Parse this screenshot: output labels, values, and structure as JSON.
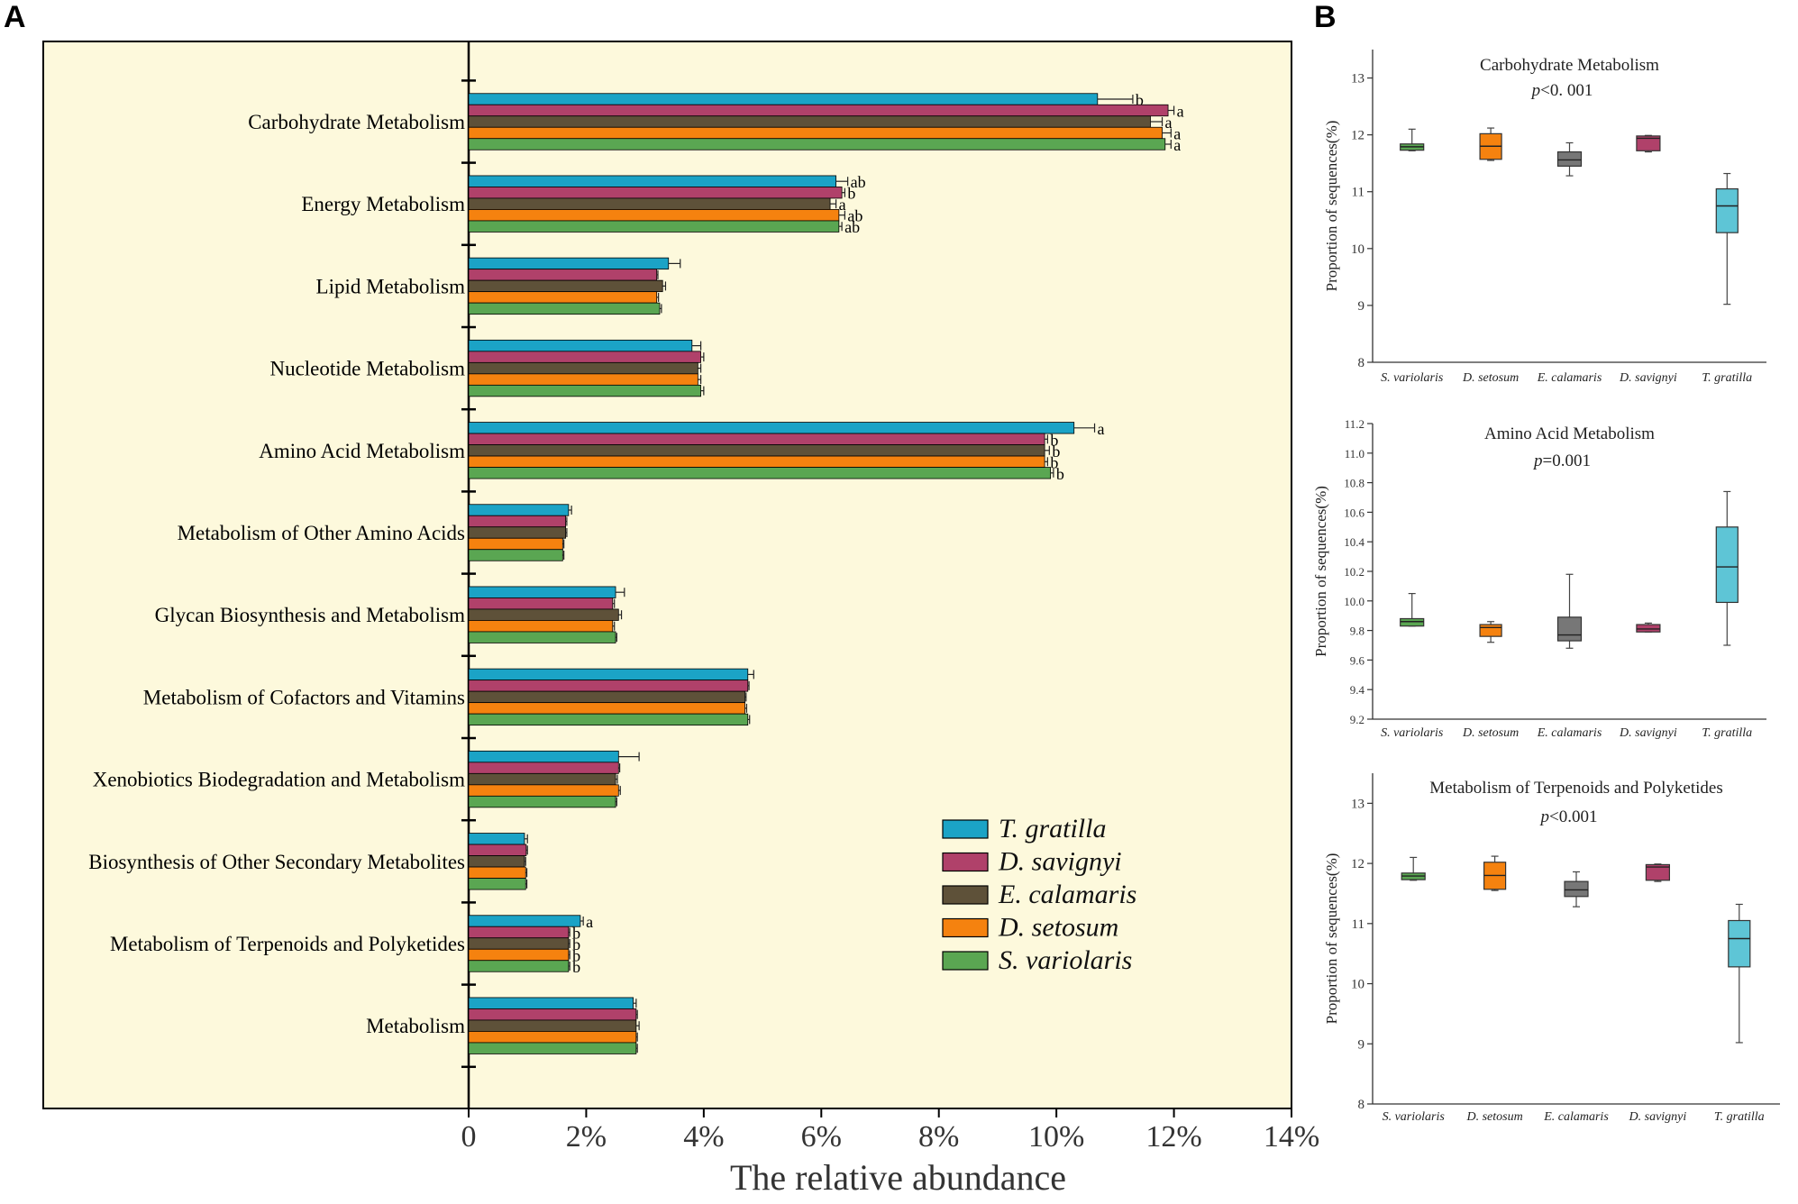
{
  "panels": {
    "a_label": "A",
    "b_label": "B"
  },
  "colors": {
    "T. gratilla": "#1ba3c6",
    "D. savignyi": "#b0416a",
    "E. calamaris": "#5e5139",
    "D. setosum": "#f5820f",
    "S. variolaris": "#5aa652",
    "panel_bg": "#fdf9dc"
  },
  "chart_data": [
    {
      "type": "bar",
      "orientation": "horizontal",
      "title": "",
      "xlabel": "The relative abundance",
      "ylabel": "",
      "xlim": [
        0,
        14
      ],
      "x_ticks": [
        "0",
        "2%",
        "4%",
        "6%",
        "8%",
        "10%",
        "12%",
        "14%"
      ],
      "legend_position": "bottom-right",
      "categories": [
        "Carbohydrate Metabolism",
        "Energy Metabolism",
        "Lipid Metabolism",
        "Nucleotide Metabolism",
        "Amino Acid Metabolism",
        "Metabolism of Other Amino Acids",
        "Glycan Biosynthesis and Metabolism",
        "Metabolism of Cofactors and Vitamins",
        "Xenobiotics Biodegradation and Metabolism",
        "Biosynthesis of Other Secondary Metabolites",
        "Metabolism of Terpenoids and Polyketides",
        "Metabolism"
      ],
      "series": [
        {
          "name": "T. gratilla",
          "values": [
            10.7,
            6.25,
            3.4,
            3.8,
            10.3,
            1.7,
            2.5,
            4.75,
            2.55,
            0.95,
            1.9,
            2.8
          ],
          "errors": [
            0.6,
            0.2,
            0.2,
            0.15,
            0.35,
            0.05,
            0.15,
            0.1,
            0.35,
            0.05,
            0.05,
            0.05
          ],
          "sig": [
            "b",
            "ab",
            "",
            "",
            "a",
            "",
            "",
            "",
            "",
            "",
            "a",
            ""
          ]
        },
        {
          "name": "D. savignyi",
          "values": [
            11.9,
            6.35,
            3.2,
            3.95,
            9.8,
            1.65,
            2.45,
            4.75,
            2.55,
            0.98,
            1.7,
            2.85
          ],
          "errors": [
            0.1,
            0.05,
            0.02,
            0.05,
            0.05,
            0.02,
            0.03,
            0.02,
            0.02,
            0.02,
            0.02,
            0.02
          ],
          "sig": [
            "a",
            "b",
            "",
            "",
            "b",
            "",
            "",
            "",
            "",
            "",
            "b",
            ""
          ]
        },
        {
          "name": "E. calamaris",
          "values": [
            11.6,
            6.15,
            3.3,
            3.9,
            9.8,
            1.65,
            2.55,
            4.7,
            2.5,
            0.95,
            1.7,
            2.85
          ],
          "errors": [
            0.2,
            0.1,
            0.05,
            0.05,
            0.08,
            0.02,
            0.05,
            0.02,
            0.03,
            0.02,
            0.02,
            0.05
          ],
          "sig": [
            "a",
            "a",
            "",
            "",
            "b",
            "",
            "",
            "",
            "",
            "",
            "b",
            ""
          ]
        },
        {
          "name": "D. setosum",
          "values": [
            11.8,
            6.3,
            3.2,
            3.9,
            9.8,
            1.6,
            2.45,
            4.7,
            2.55,
            0.97,
            1.7,
            2.85
          ],
          "errors": [
            0.15,
            0.1,
            0.03,
            0.05,
            0.05,
            0.02,
            0.03,
            0.03,
            0.03,
            0.02,
            0.02,
            0.02
          ],
          "sig": [
            "a",
            "ab",
            "",
            "",
            "b",
            "",
            "",
            "",
            "",
            "",
            "b",
            ""
          ]
        },
        {
          "name": "S. variolaris",
          "values": [
            11.85,
            6.3,
            3.25,
            3.95,
            9.9,
            1.6,
            2.5,
            4.75,
            2.5,
            0.97,
            1.7,
            2.85
          ],
          "errors": [
            0.1,
            0.05,
            0.03,
            0.05,
            0.05,
            0.02,
            0.02,
            0.03,
            0.02,
            0.02,
            0.02,
            0.02
          ],
          "sig": [
            "a",
            "ab",
            "",
            "",
            "b",
            "",
            "",
            "",
            "",
            "",
            "b",
            ""
          ]
        }
      ]
    },
    {
      "type": "box",
      "title": "Carbohydrate Metabolism",
      "pvalue_prefix": "p",
      "pvalue_rest": "<0. 001",
      "ylabel": "Proportion of sequences(%)",
      "ylim": [
        8,
        13.5
      ],
      "y_ticks": [
        8,
        9,
        10,
        11,
        12,
        13
      ],
      "y_tick_labels": [
        "8",
        "9",
        "10",
        "11",
        "12",
        "13"
      ],
      "categories": [
        "S. variolaris",
        "D. setosum",
        "E. calamaris",
        "D. savignyi",
        "T. gratilla"
      ],
      "boxes": [
        {
          "name": "S. variolaris",
          "min": 11.72,
          "q1": 11.73,
          "median": 11.79,
          "q3": 11.84,
          "max": 12.1
        },
        {
          "name": "D. setosum",
          "min": 11.55,
          "q1": 11.57,
          "median": 11.8,
          "q3": 12.02,
          "max": 12.12
        },
        {
          "name": "E. calamaris",
          "min": 11.28,
          "q1": 11.45,
          "median": 11.56,
          "q3": 11.7,
          "max": 11.86
        },
        {
          "name": "D. savignyi",
          "min": 11.7,
          "q1": 11.72,
          "median": 11.94,
          "q3": 11.98,
          "max": 11.99
        },
        {
          "name": "T. gratilla",
          "min": 9.02,
          "q1": 10.28,
          "median": 10.75,
          "q3": 11.05,
          "max": 11.32
        }
      ]
    },
    {
      "type": "box",
      "title": "Amino Acid Metabolism",
      "pvalue_prefix": "p",
      "pvalue_rest": "=0.001",
      "ylabel": "Proportion of sequences(%)",
      "ylim": [
        9.2,
        11.2
      ],
      "y_ticks": [
        9.2,
        9.4,
        9.6,
        9.8,
        10.0,
        10.2,
        10.4,
        10.6,
        10.8,
        11.0,
        11.2
      ],
      "y_tick_labels": [
        "9.2",
        "9.4",
        "9.6",
        "9.8",
        "10.0",
        "10.2",
        "10.4",
        "10.6",
        "10.8",
        "11.0",
        "11.2"
      ],
      "categories": [
        "S. variolaris",
        "D. setosum",
        "E. calamaris",
        "D. savignyi",
        "T. gratilla"
      ],
      "boxes": [
        {
          "name": "S. variolaris",
          "min": 9.83,
          "q1": 9.83,
          "median": 9.86,
          "q3": 9.88,
          "max": 10.05
        },
        {
          "name": "D. setosum",
          "min": 9.72,
          "q1": 9.76,
          "median": 9.82,
          "q3": 9.84,
          "max": 9.86
        },
        {
          "name": "E. calamaris",
          "min": 9.68,
          "q1": 9.73,
          "median": 9.77,
          "q3": 9.89,
          "max": 10.18
        },
        {
          "name": "D. savignyi",
          "min": 9.79,
          "q1": 9.79,
          "median": 9.81,
          "q3": 9.84,
          "max": 9.85
        },
        {
          "name": "T. gratilla",
          "min": 9.7,
          "q1": 9.99,
          "median": 10.23,
          "q3": 10.5,
          "max": 10.74
        }
      ]
    },
    {
      "type": "box",
      "title": "Metabolism of Terpenoids and Polyketides",
      "pvalue_prefix": "p",
      "pvalue_rest": "<0.001",
      "ylabel": "Proportion of sequences(%)",
      "ylim": [
        8,
        13.5
      ],
      "y_ticks": [
        8,
        9,
        10,
        11,
        12,
        13
      ],
      "y_tick_labels": [
        "8",
        "9",
        "10",
        "11",
        "12",
        "13"
      ],
      "categories": [
        "S. variolaris",
        "D. setosum",
        "E. calamaris",
        "D. savignyi",
        "T. gratilla"
      ],
      "boxes": [
        {
          "name": "S. variolaris",
          "min": 11.72,
          "q1": 11.73,
          "median": 11.79,
          "q3": 11.84,
          "max": 12.1
        },
        {
          "name": "D. setosum",
          "min": 11.55,
          "q1": 11.57,
          "median": 11.8,
          "q3": 12.02,
          "max": 12.12
        },
        {
          "name": "E. calamaris",
          "min": 11.28,
          "q1": 11.45,
          "median": 11.56,
          "q3": 11.7,
          "max": 11.86
        },
        {
          "name": "D. savignyi",
          "min": 11.7,
          "q1": 11.72,
          "median": 11.94,
          "q3": 11.98,
          "max": 11.99
        },
        {
          "name": "T. gratilla",
          "min": 9.02,
          "q1": 10.28,
          "median": 10.75,
          "q3": 11.05,
          "max": 11.32
        }
      ]
    }
  ]
}
